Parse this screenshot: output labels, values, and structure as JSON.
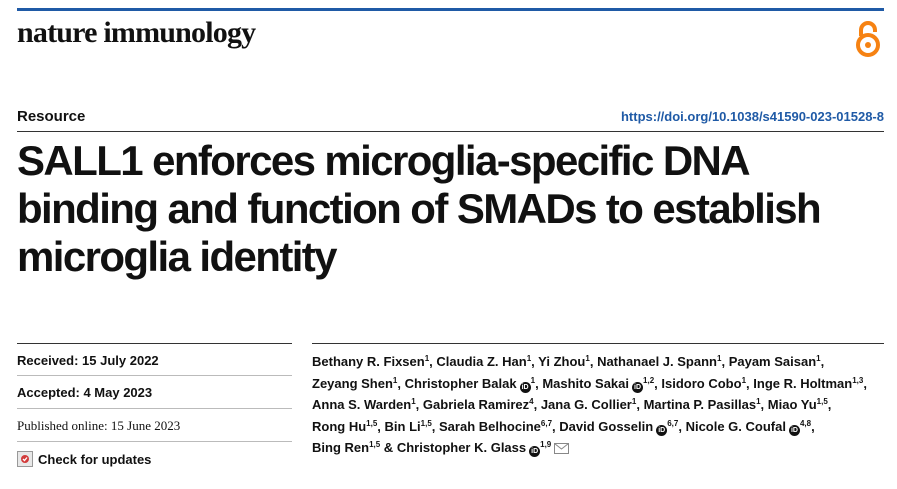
{
  "header": {
    "journal": "nature immunology",
    "section": "Resource",
    "doi": "https://doi.org/10.1038/s41590-023-01528-8"
  },
  "title": "SALL1 enforces microglia-specific DNA binding and function of SMADs to establish microglia identity",
  "dates": {
    "received": "Received: 15 July 2022",
    "accepted": "Accepted: 4 May 2023",
    "published": "Published online: 15 June 2023"
  },
  "check_updates": "Check for updates",
  "authors": [
    {
      "name": "Bethany R. Fixsen",
      "sup": "1",
      "orcid": false,
      "sep": ","
    },
    {
      "name": "Claudia Z. Han",
      "sup": "1",
      "orcid": false,
      "sep": ","
    },
    {
      "name": "Yi Zhou",
      "sup": "1",
      "orcid": false,
      "sep": ","
    },
    {
      "name": "Nathanael J. Spann",
      "sup": "1",
      "orcid": false,
      "sep": ","
    },
    {
      "name": "Payam Saisan",
      "sup": "1",
      "orcid": false,
      "sep": ","
    },
    {
      "name": "Zeyang Shen",
      "sup": "1",
      "orcid": false,
      "sep": ","
    },
    {
      "name": "Christopher Balak",
      "sup": "1",
      "orcid": true,
      "sep": ","
    },
    {
      "name": "Mashito Sakai",
      "sup": "1,2",
      "orcid": true,
      "sep": ","
    },
    {
      "name": "Isidoro Cobo",
      "sup": "1",
      "orcid": false,
      "sep": ","
    },
    {
      "name": "Inge R. Holtman",
      "sup": "1,3",
      "orcid": false,
      "sep": ","
    },
    {
      "name": "Anna S. Warden",
      "sup": "1",
      "orcid": false,
      "sep": ","
    },
    {
      "name": "Gabriela Ramirez",
      "sup": "4",
      "orcid": false,
      "sep": ","
    },
    {
      "name": "Jana G. Collier",
      "sup": "1",
      "orcid": false,
      "sep": ","
    },
    {
      "name": "Martina P. Pasillas",
      "sup": "1",
      "orcid": false,
      "sep": ","
    },
    {
      "name": "Miao Yu",
      "sup": "1,5",
      "orcid": false,
      "sep": ","
    },
    {
      "name": "Rong Hu",
      "sup": "1,5",
      "orcid": false,
      "sep": ","
    },
    {
      "name": "Bin Li",
      "sup": "1,5",
      "orcid": false,
      "sep": ","
    },
    {
      "name": "Sarah Belhocine",
      "sup": "6,7",
      "orcid": false,
      "sep": ","
    },
    {
      "name": "David Gosselin",
      "sup": "6,7",
      "orcid": true,
      "sep": ","
    },
    {
      "name": "Nicole G. Coufal",
      "sup": "4,8",
      "orcid": true,
      "sep": ","
    },
    {
      "name": "Bing Ren",
      "sup": "1,5",
      "orcid": false,
      "sep": " &"
    },
    {
      "name": "Christopher K. Glass",
      "sup": "1,9",
      "orcid": true,
      "sep": "",
      "mail": true
    }
  ],
  "icons": {
    "open_access": "open-access-icon",
    "orcid": "orcid-icon",
    "mail": "mail-icon",
    "check": "check-updates-icon"
  },
  "colors": {
    "accent": "#1f5aa6",
    "open_access": "#f68212"
  }
}
